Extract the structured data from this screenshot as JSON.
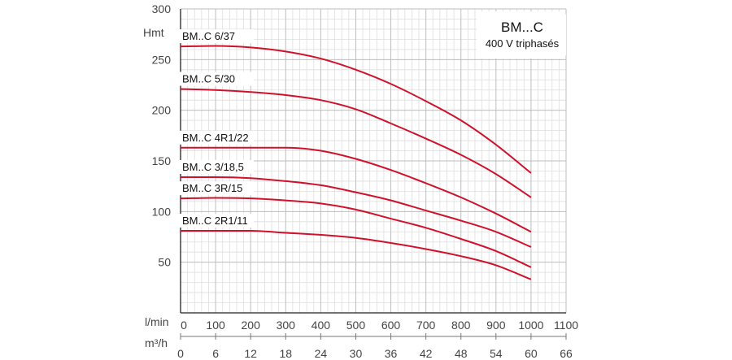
{
  "chart_data": {
    "type": "line",
    "title": "BM...C",
    "subtitle": "400 V triphasés",
    "ylabel": "Hmt",
    "x_unit_primary": "l/min",
    "x_unit_secondary": "m³/h",
    "xlim": [
      0,
      1100
    ],
    "ylim": [
      0,
      300
    ],
    "x_ticks": [
      0,
      100,
      200,
      300,
      400,
      500,
      600,
      700,
      800,
      900,
      1000,
      1100
    ],
    "x2_ticks": [
      0,
      6,
      12,
      18,
      24,
      30,
      36,
      42,
      48,
      54,
      60,
      66
    ],
    "y_ticks": [
      50,
      100,
      150,
      200,
      250,
      300
    ],
    "grid": true,
    "series": [
      {
        "name": "BM..C 6/37",
        "x": [
          0,
          100,
          200,
          300,
          400,
          500,
          600,
          700,
          800,
          900,
          1000
        ],
        "y": [
          263,
          263.5,
          262,
          258,
          251,
          240,
          226,
          209,
          190,
          166,
          138
        ]
      },
      {
        "name": "BM..C 5/30",
        "x": [
          0,
          100,
          200,
          300,
          400,
          500,
          600,
          700,
          800,
          900,
          1000
        ],
        "y": [
          221,
          220,
          218,
          215,
          210,
          201,
          187,
          172,
          156,
          137,
          114
        ]
      },
      {
        "name": "BM..C 4R1/22",
        "x": [
          0,
          100,
          200,
          300,
          400,
          500,
          600,
          700,
          800,
          900,
          1000
        ],
        "y": [
          163,
          163,
          163,
          163,
          160,
          152,
          141,
          128,
          114,
          98,
          80
        ]
      },
      {
        "name": "BM..C 3/18,5",
        "x": [
          0,
          100,
          200,
          300,
          400,
          500,
          600,
          700,
          800,
          900,
          1000
        ],
        "y": [
          134,
          134,
          133,
          130,
          126,
          119,
          111,
          101,
          91,
          80,
          65
        ]
      },
      {
        "name": "BM..C 3R/15",
        "x": [
          0,
          100,
          200,
          300,
          400,
          500,
          600,
          700,
          800,
          900,
          1000
        ],
        "y": [
          113,
          113.5,
          113,
          111,
          108,
          102,
          93,
          84,
          73,
          61,
          45
        ]
      },
      {
        "name": "BM..C 2R1/11",
        "x": [
          0,
          100,
          200,
          300,
          400,
          500,
          600,
          700,
          800,
          900,
          1000
        ],
        "y": [
          81,
          81,
          81,
          79,
          77,
          74,
          69,
          63,
          56,
          47,
          33
        ]
      }
    ],
    "line_color": "#d0112b",
    "grid_color": "#bdbdbd",
    "minor_grid_color": "#dedede"
  }
}
